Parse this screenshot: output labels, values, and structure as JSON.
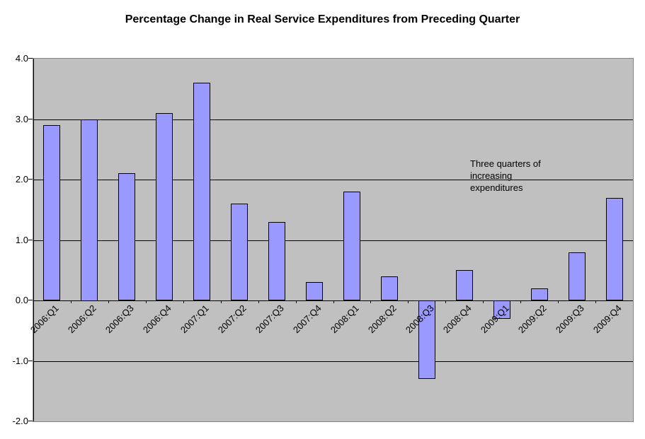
{
  "chart_data": {
    "type": "bar",
    "title": "Percentage Change in Real Service Expenditures from Preceding Quarter",
    "categories": [
      "2006:Q1",
      "2006:Q2",
      "2006:Q3",
      "2006:Q4",
      "2007:Q1",
      "2007:Q2",
      "2007:Q3",
      "2007:Q4",
      "2008:Q1",
      "2008:Q2",
      "2008:Q3",
      "2008:Q4",
      "2009:Q1",
      "2009:Q2",
      "2009:Q3",
      "2009:Q4"
    ],
    "values": [
      2.9,
      3.0,
      2.1,
      3.1,
      3.6,
      1.6,
      1.3,
      0.3,
      1.8,
      0.4,
      -1.3,
      0.5,
      -0.3,
      0.2,
      0.8,
      1.7
    ],
    "xlabel": "",
    "ylabel": "",
    "ylim": [
      -2,
      4
    ],
    "ytick_step": 1,
    "ytick_labels": [
      "4.0",
      "3.0",
      "2.0",
      "1.0",
      "0.0",
      "-1.0",
      "-2.0"
    ],
    "grid": "horizontal-major",
    "legend": "none",
    "annotation": {
      "lines": [
        "Three quarters of",
        "increasing",
        "expenditures"
      ]
    },
    "colors": {
      "bar_fill": "#9999ff",
      "bar_border": "#000000",
      "plot_background": "#c0c0c0",
      "plot_border": "#848484",
      "gridline": "#000000",
      "text": "#000000",
      "page_background": "#ffffff"
    }
  }
}
